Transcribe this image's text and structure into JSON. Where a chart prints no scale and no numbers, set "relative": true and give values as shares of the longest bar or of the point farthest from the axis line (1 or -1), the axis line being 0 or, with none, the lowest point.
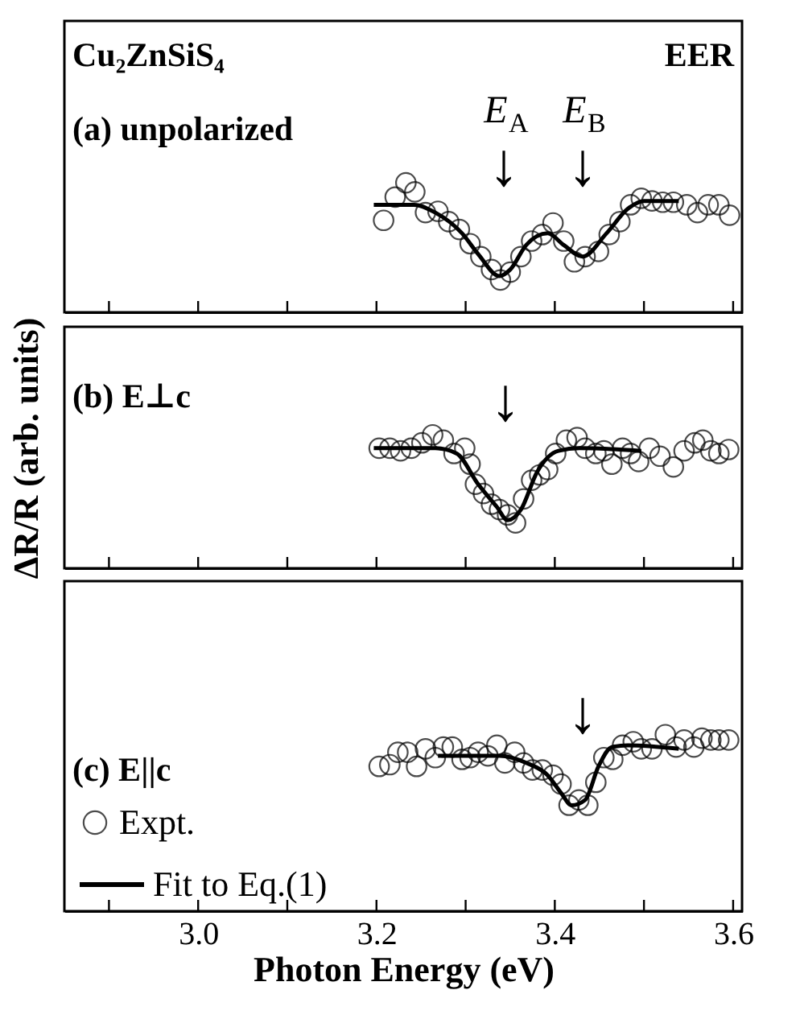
{
  "chart_data": [
    {
      "type": "scatter",
      "relative": true,
      "xlim": [
        2.85,
        3.61
      ],
      "tick_labels": false,
      "grid": false,
      "legend": false,
      "xticks": [
        {
          "value": 2.9,
          "label": null
        },
        {
          "value": 3.0,
          "label": null
        },
        {
          "value": 3.1,
          "label": null
        },
        {
          "value": 3.2,
          "label": null
        },
        {
          "value": 3.3,
          "label": null
        },
        {
          "value": 3.4,
          "label": null
        },
        {
          "value": 3.5,
          "label": null
        },
        {
          "value": 3.6,
          "label": null
        }
      ],
      "annotations": [
        "Cu₂ZnSiS₄",
        "EER",
        "(a) unpolarized",
        "E$_{A}$",
        "E$_{B}$",
        "↓",
        "↓"
      ],
      "series": [
        {
          "color": "#000000",
          "x": [
            3.208,
            3.221,
            3.233,
            3.243,
            3.255,
            3.269,
            3.281,
            3.293,
            3.305,
            3.317,
            3.329,
            3.339,
            3.35,
            3.362,
            3.374,
            3.386,
            3.398,
            3.41,
            3.422,
            3.434,
            3.449,
            3.461,
            3.473,
            3.485,
            3.497,
            3.509,
            3.521,
            3.533,
            3.548,
            3.56,
            3.572,
            3.584,
            3.596
          ],
          "values": [
            0.71,
            0.89,
            1.0,
            0.93,
            0.77,
            0.78,
            0.7,
            0.64,
            0.53,
            0.43,
            0.33,
            0.25,
            0.31,
            0.43,
            0.55,
            0.6,
            0.69,
            0.55,
            0.39,
            0.43,
            0.47,
            0.6,
            0.7,
            0.83,
            0.88,
            0.86,
            0.85,
            0.85,
            0.83,
            0.77,
            0.83,
            0.83,
            0.75
          ]
        },
        {
          "type": "line",
          "color": "#000000",
          "x": [
            3.197,
            3.242,
            3.266,
            3.296,
            3.314,
            3.338,
            3.35,
            3.368,
            3.392,
            3.41,
            3.431,
            3.458,
            3.482,
            3.5,
            3.539
          ],
          "values": [
            0.83,
            0.83,
            0.77,
            0.61,
            0.45,
            0.28,
            0.33,
            0.52,
            0.61,
            0.52,
            0.43,
            0.61,
            0.8,
            0.86,
            0.86
          ]
        }
      ]
    },
    {
      "type": "scatter",
      "relative": true,
      "xlim": [
        2.85,
        3.61
      ],
      "tick_labels": false,
      "grid": false,
      "legend": false,
      "ylabel": "ΔR/R (arb. units)",
      "xticks": [
        {
          "value": 2.9,
          "label": null
        },
        {
          "value": 3.0,
          "label": null
        },
        {
          "value": 3.1,
          "label": null
        },
        {
          "value": 3.2,
          "label": null
        },
        {
          "value": 3.3,
          "label": null
        },
        {
          "value": 3.4,
          "label": null
        },
        {
          "value": 3.5,
          "label": null
        },
        {
          "value": 3.6,
          "label": null
        }
      ],
      "annotations": [
        "(b) E⊥c",
        "↓"
      ],
      "series": [
        {
          "color": "#000000",
          "x": [
            3.203,
            3.215,
            3.227,
            3.239,
            3.251,
            3.263,
            3.275,
            3.287,
            3.299,
            3.305,
            3.311,
            3.32,
            3.329,
            3.338,
            3.347,
            3.356,
            3.365,
            3.374,
            3.383,
            3.392,
            3.401,
            3.413,
            3.425,
            3.434,
            3.446,
            3.455,
            3.464,
            3.476,
            3.485,
            3.494,
            3.506,
            3.518,
            3.533,
            3.545,
            3.557,
            3.566,
            3.575,
            3.584,
            3.595
          ],
          "values": [
            0.9,
            0.9,
            0.88,
            0.9,
            0.94,
            1.0,
            0.96,
            0.86,
            0.9,
            0.78,
            0.63,
            0.56,
            0.48,
            0.44,
            0.4,
            0.34,
            0.52,
            0.66,
            0.7,
            0.74,
            0.86,
            0.96,
            0.98,
            0.9,
            0.86,
            0.88,
            0.78,
            0.9,
            0.86,
            0.8,
            0.9,
            0.84,
            0.76,
            0.88,
            0.94,
            0.96,
            0.88,
            0.86,
            0.89
          ]
        },
        {
          "type": "line",
          "color": "#000000",
          "x": [
            3.197,
            3.266,
            3.29,
            3.314,
            3.335,
            3.347,
            3.362,
            3.38,
            3.404,
            3.428,
            3.497
          ],
          "values": [
            0.9,
            0.9,
            0.86,
            0.63,
            0.46,
            0.36,
            0.44,
            0.72,
            0.88,
            0.9,
            0.88
          ]
        }
      ]
    },
    {
      "type": "scatter",
      "relative": true,
      "xlim": [
        2.85,
        3.61
      ],
      "tick_labels": "x",
      "grid": false,
      "legend": "bottom left",
      "xlabel": "Photon Energy (eV)",
      "xticks": [
        {
          "value": 2.9,
          "label": null
        },
        {
          "value": 3.0,
          "label": "3.0"
        },
        {
          "value": 3.1,
          "label": null
        },
        {
          "value": 3.2,
          "label": "3.2"
        },
        {
          "value": 3.3,
          "label": null
        },
        {
          "value": 3.4,
          "label": "3.4"
        },
        {
          "value": 3.5,
          "label": null
        },
        {
          "value": 3.6,
          "label": "3.6"
        }
      ],
      "annotations": [
        "(c) E||c",
        "↓"
      ],
      "series": [
        {
          "name": "Expt.",
          "color": "#000000",
          "x": [
            3.203,
            3.215,
            3.224,
            3.235,
            3.245,
            3.255,
            3.266,
            3.275,
            3.285,
            3.296,
            3.305,
            3.314,
            3.325,
            3.335,
            3.344,
            3.355,
            3.365,
            3.375,
            3.386,
            3.398,
            3.407,
            3.416,
            3.427,
            3.437,
            3.446,
            3.455,
            3.465,
            3.476,
            3.488,
            3.497,
            3.509,
            3.524,
            3.536,
            3.545,
            3.556,
            3.565,
            3.575,
            3.584,
            3.595
          ],
          "values": [
            0.82,
            0.83,
            0.9,
            0.9,
            0.82,
            0.92,
            0.87,
            0.93,
            0.93,
            0.86,
            0.87,
            0.9,
            0.88,
            0.94,
            0.84,
            0.9,
            0.84,
            0.8,
            0.8,
            0.77,
            0.72,
            0.6,
            0.63,
            0.6,
            0.73,
            0.87,
            0.86,
            0.94,
            0.96,
            0.92,
            0.92,
            1.0,
            0.93,
            0.97,
            0.93,
            0.98,
            0.97,
            0.97,
            0.97
          ]
        },
        {
          "type": "line",
          "name": "Fit to Eq.(1)",
          "color": "#000000",
          "x": [
            3.269,
            3.338,
            3.368,
            3.392,
            3.407,
            3.419,
            3.434,
            3.449,
            3.464,
            3.482,
            3.539
          ],
          "values": [
            0.88,
            0.88,
            0.84,
            0.77,
            0.67,
            0.6,
            0.63,
            0.82,
            0.93,
            0.94,
            0.92
          ]
        }
      ]
    }
  ]
}
